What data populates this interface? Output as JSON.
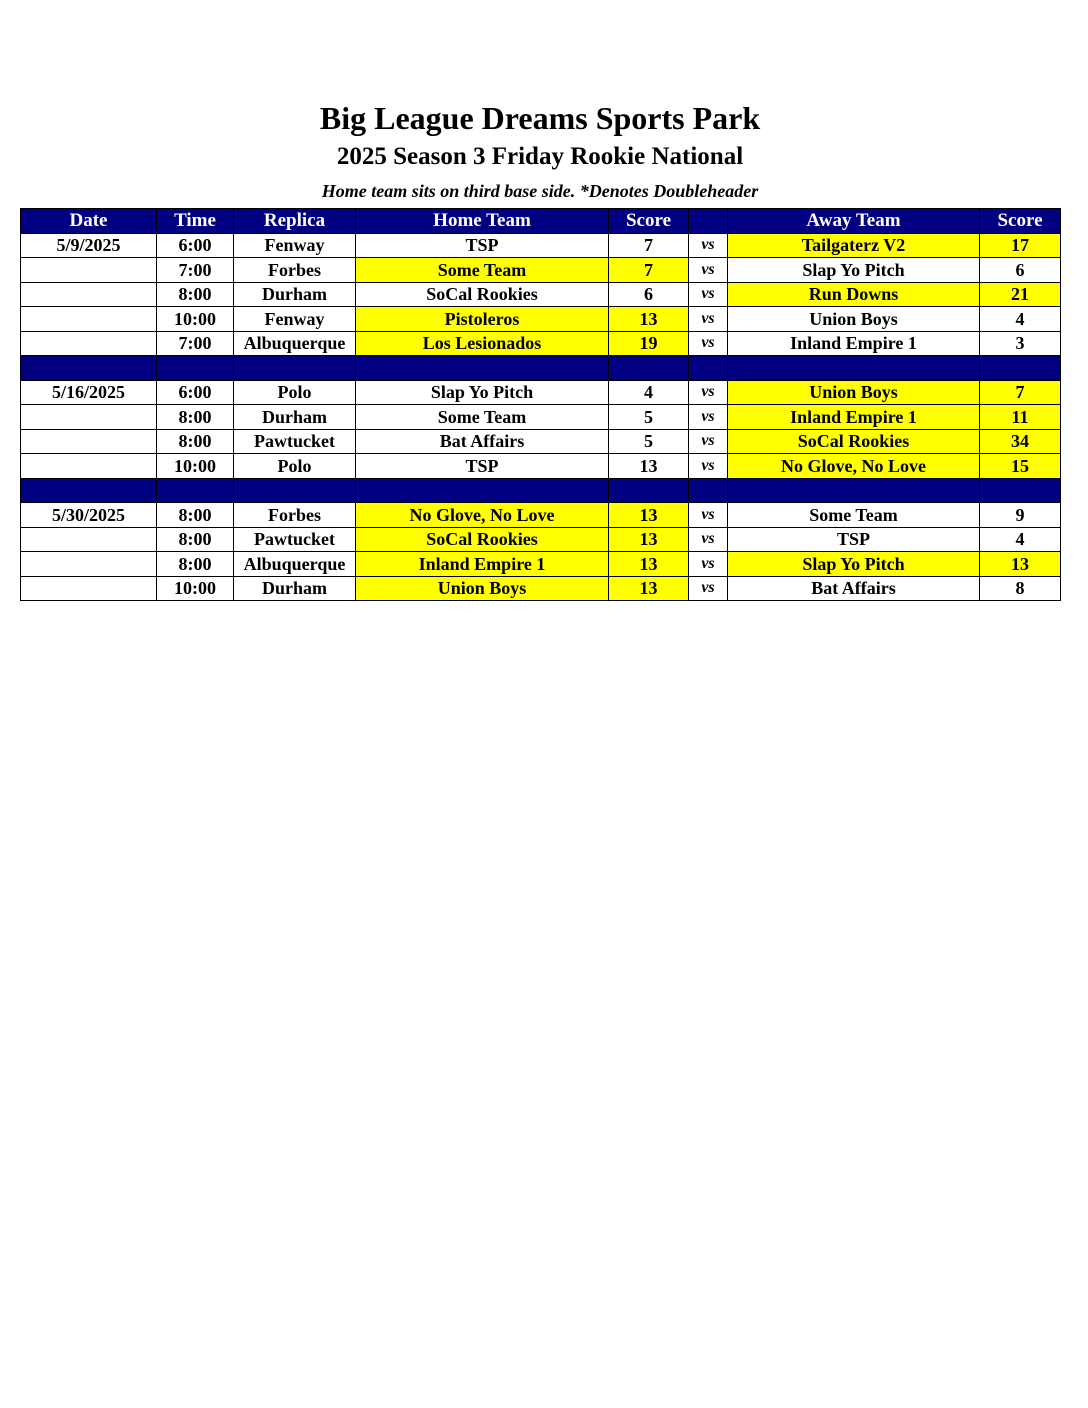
{
  "header": {
    "title": "Big League Dreams Sports Park",
    "subtitle": "2025 Season 3 Friday Rookie National",
    "note": "Home team sits on third base side.  *Denotes Doubleheader"
  },
  "colors": {
    "header_bg": "#000080",
    "winner_highlight": "#ffff00"
  },
  "columns": [
    "Date",
    "Time",
    "Replica",
    "Home Team",
    "Score",
    "",
    "Away Team",
    "Score"
  ],
  "rows": [
    {
      "date": "5/9/2025",
      "time": "6:00",
      "replica": "Fenway",
      "home": "TSP",
      "home_score": "7",
      "vs": "vs",
      "away": "Tailgaterz V2",
      "away_score": "17",
      "highlight": [
        "away"
      ]
    },
    {
      "date": "",
      "time": "7:00",
      "replica": "Forbes",
      "home": "Some Team",
      "home_score": "7",
      "vs": "vs",
      "away": "Slap Yo Pitch",
      "away_score": "6",
      "highlight": [
        "home"
      ]
    },
    {
      "date": "",
      "time": "8:00",
      "replica": "Durham",
      "home": "SoCal Rookies",
      "home_score": "6",
      "vs": "vs",
      "away": "Run Downs",
      "away_score": "21",
      "highlight": [
        "away"
      ]
    },
    {
      "date": "",
      "time": "10:00",
      "replica": "Fenway",
      "home": "Pistoleros",
      "home_score": "13",
      "vs": "vs",
      "away": "Union Boys",
      "away_score": "4",
      "highlight": [
        "home"
      ]
    },
    {
      "date": "",
      "time": "7:00",
      "replica": "Albuquerque",
      "home": "Los Lesionados",
      "home_score": "19",
      "vs": "vs",
      "away": "Inland Empire 1",
      "away_score": "3",
      "highlight": [
        "home"
      ]
    },
    {
      "separator": true
    },
    {
      "date": "5/16/2025",
      "time": "6:00",
      "replica": "Polo",
      "home": "Slap Yo Pitch",
      "home_score": "4",
      "vs": "vs",
      "away": "Union Boys",
      "away_score": "7",
      "highlight": [
        "away"
      ]
    },
    {
      "date": "",
      "time": "8:00",
      "replica": "Durham",
      "home": "Some Team",
      "home_score": "5",
      "vs": "vs",
      "away": "Inland Empire 1",
      "away_score": "11",
      "highlight": [
        "away"
      ]
    },
    {
      "date": "",
      "time": "8:00",
      "replica": "Pawtucket",
      "home": "Bat Affairs",
      "home_score": "5",
      "vs": "vs",
      "away": "SoCal Rookies",
      "away_score": "34",
      "highlight": [
        "away"
      ]
    },
    {
      "date": "",
      "time": "10:00",
      "replica": "Polo",
      "home": "TSP",
      "home_score": "13",
      "vs": "vs",
      "away": "No Glove, No Love",
      "away_score": "15",
      "highlight": [
        "away"
      ]
    },
    {
      "separator": true
    },
    {
      "date": "5/30/2025",
      "time": "8:00",
      "replica": "Forbes",
      "home": "No Glove, No Love",
      "home_score": "13",
      "vs": "vs",
      "away": "Some Team",
      "away_score": "9",
      "highlight": [
        "home"
      ]
    },
    {
      "date": "",
      "time": "8:00",
      "replica": "Pawtucket",
      "home": "SoCal Rookies",
      "home_score": "13",
      "vs": "vs",
      "away": "TSP",
      "away_score": "4",
      "highlight": [
        "home"
      ]
    },
    {
      "date": "",
      "time": "8:00",
      "replica": "Albuquerque",
      "home": "Inland Empire 1",
      "home_score": "13",
      "vs": "vs",
      "away": "Slap Yo Pitch",
      "away_score": "13",
      "highlight": [
        "home",
        "away"
      ]
    },
    {
      "date": "",
      "time": "10:00",
      "replica": "Durham",
      "home": "Union Boys",
      "home_score": "13",
      "vs": "vs",
      "away": "Bat Affairs",
      "away_score": "8",
      "highlight": [
        "home"
      ]
    }
  ]
}
